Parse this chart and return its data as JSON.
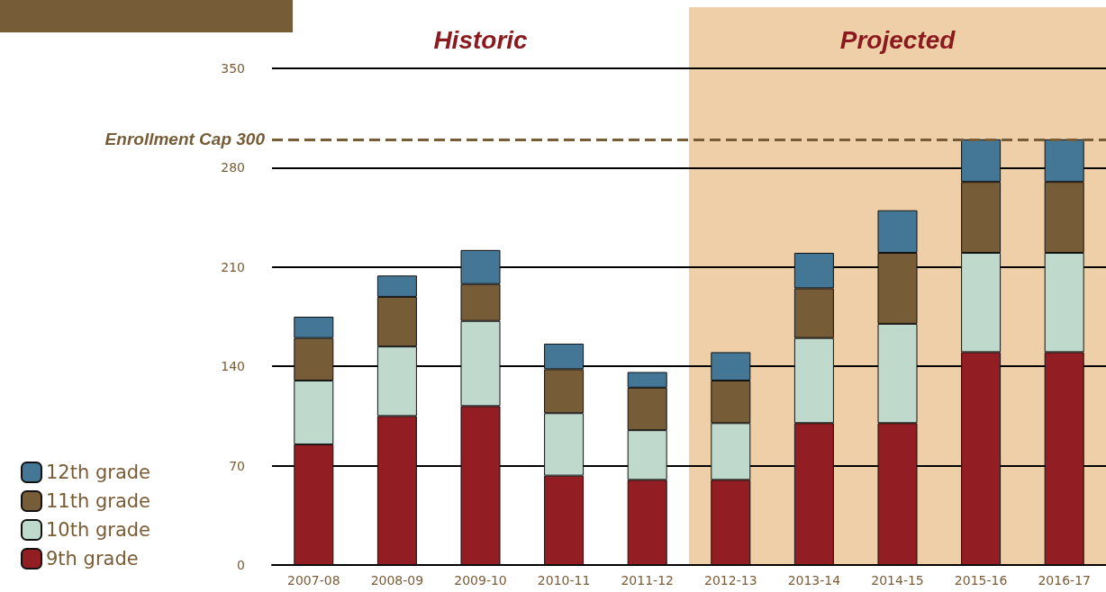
{
  "chart_data": {
    "type": "bar",
    "stacked": true,
    "categories": [
      "2007-08",
      "2008-09",
      "2009-10",
      "2010-11",
      "2011-12",
      "2012-13",
      "2013-14",
      "2014-15",
      "2015-16",
      "2016-17"
    ],
    "series": [
      {
        "name": "9th grade",
        "color": "#921d22",
        "values": [
          85,
          105,
          112,
          63,
          60,
          60,
          100,
          100,
          150,
          150
        ]
      },
      {
        "name": "10th grade",
        "color": "#bfdacc",
        "values": [
          45,
          49,
          60,
          44,
          35,
          40,
          60,
          70,
          70,
          70
        ]
      },
      {
        "name": "11th grade",
        "color": "#765c37",
        "values": [
          30,
          35,
          26,
          31,
          30,
          30,
          35,
          50,
          50,
          50
        ]
      },
      {
        "name": "12th grade",
        "color": "#437795",
        "values": [
          15,
          15,
          24,
          18,
          11,
          20,
          25,
          30,
          30,
          30
        ]
      }
    ],
    "ylim": [
      0,
      350
    ],
    "yticks": [
      0,
      70,
      140,
      210,
      280,
      350
    ],
    "grid": "y",
    "legend": "bottom left",
    "ref_lines": [
      {
        "axis": "y",
        "value": 300,
        "label": "Enrollment Cap 300",
        "color": "#765c37",
        "line_style": "dashed"
      }
    ],
    "annotations": [
      "Historic"
    ],
    "bands": [
      {
        "axis": "x",
        "from": "2012-13",
        "to": "2016-17",
        "label": "Projected",
        "color": "#efcfa8"
      }
    ]
  }
}
